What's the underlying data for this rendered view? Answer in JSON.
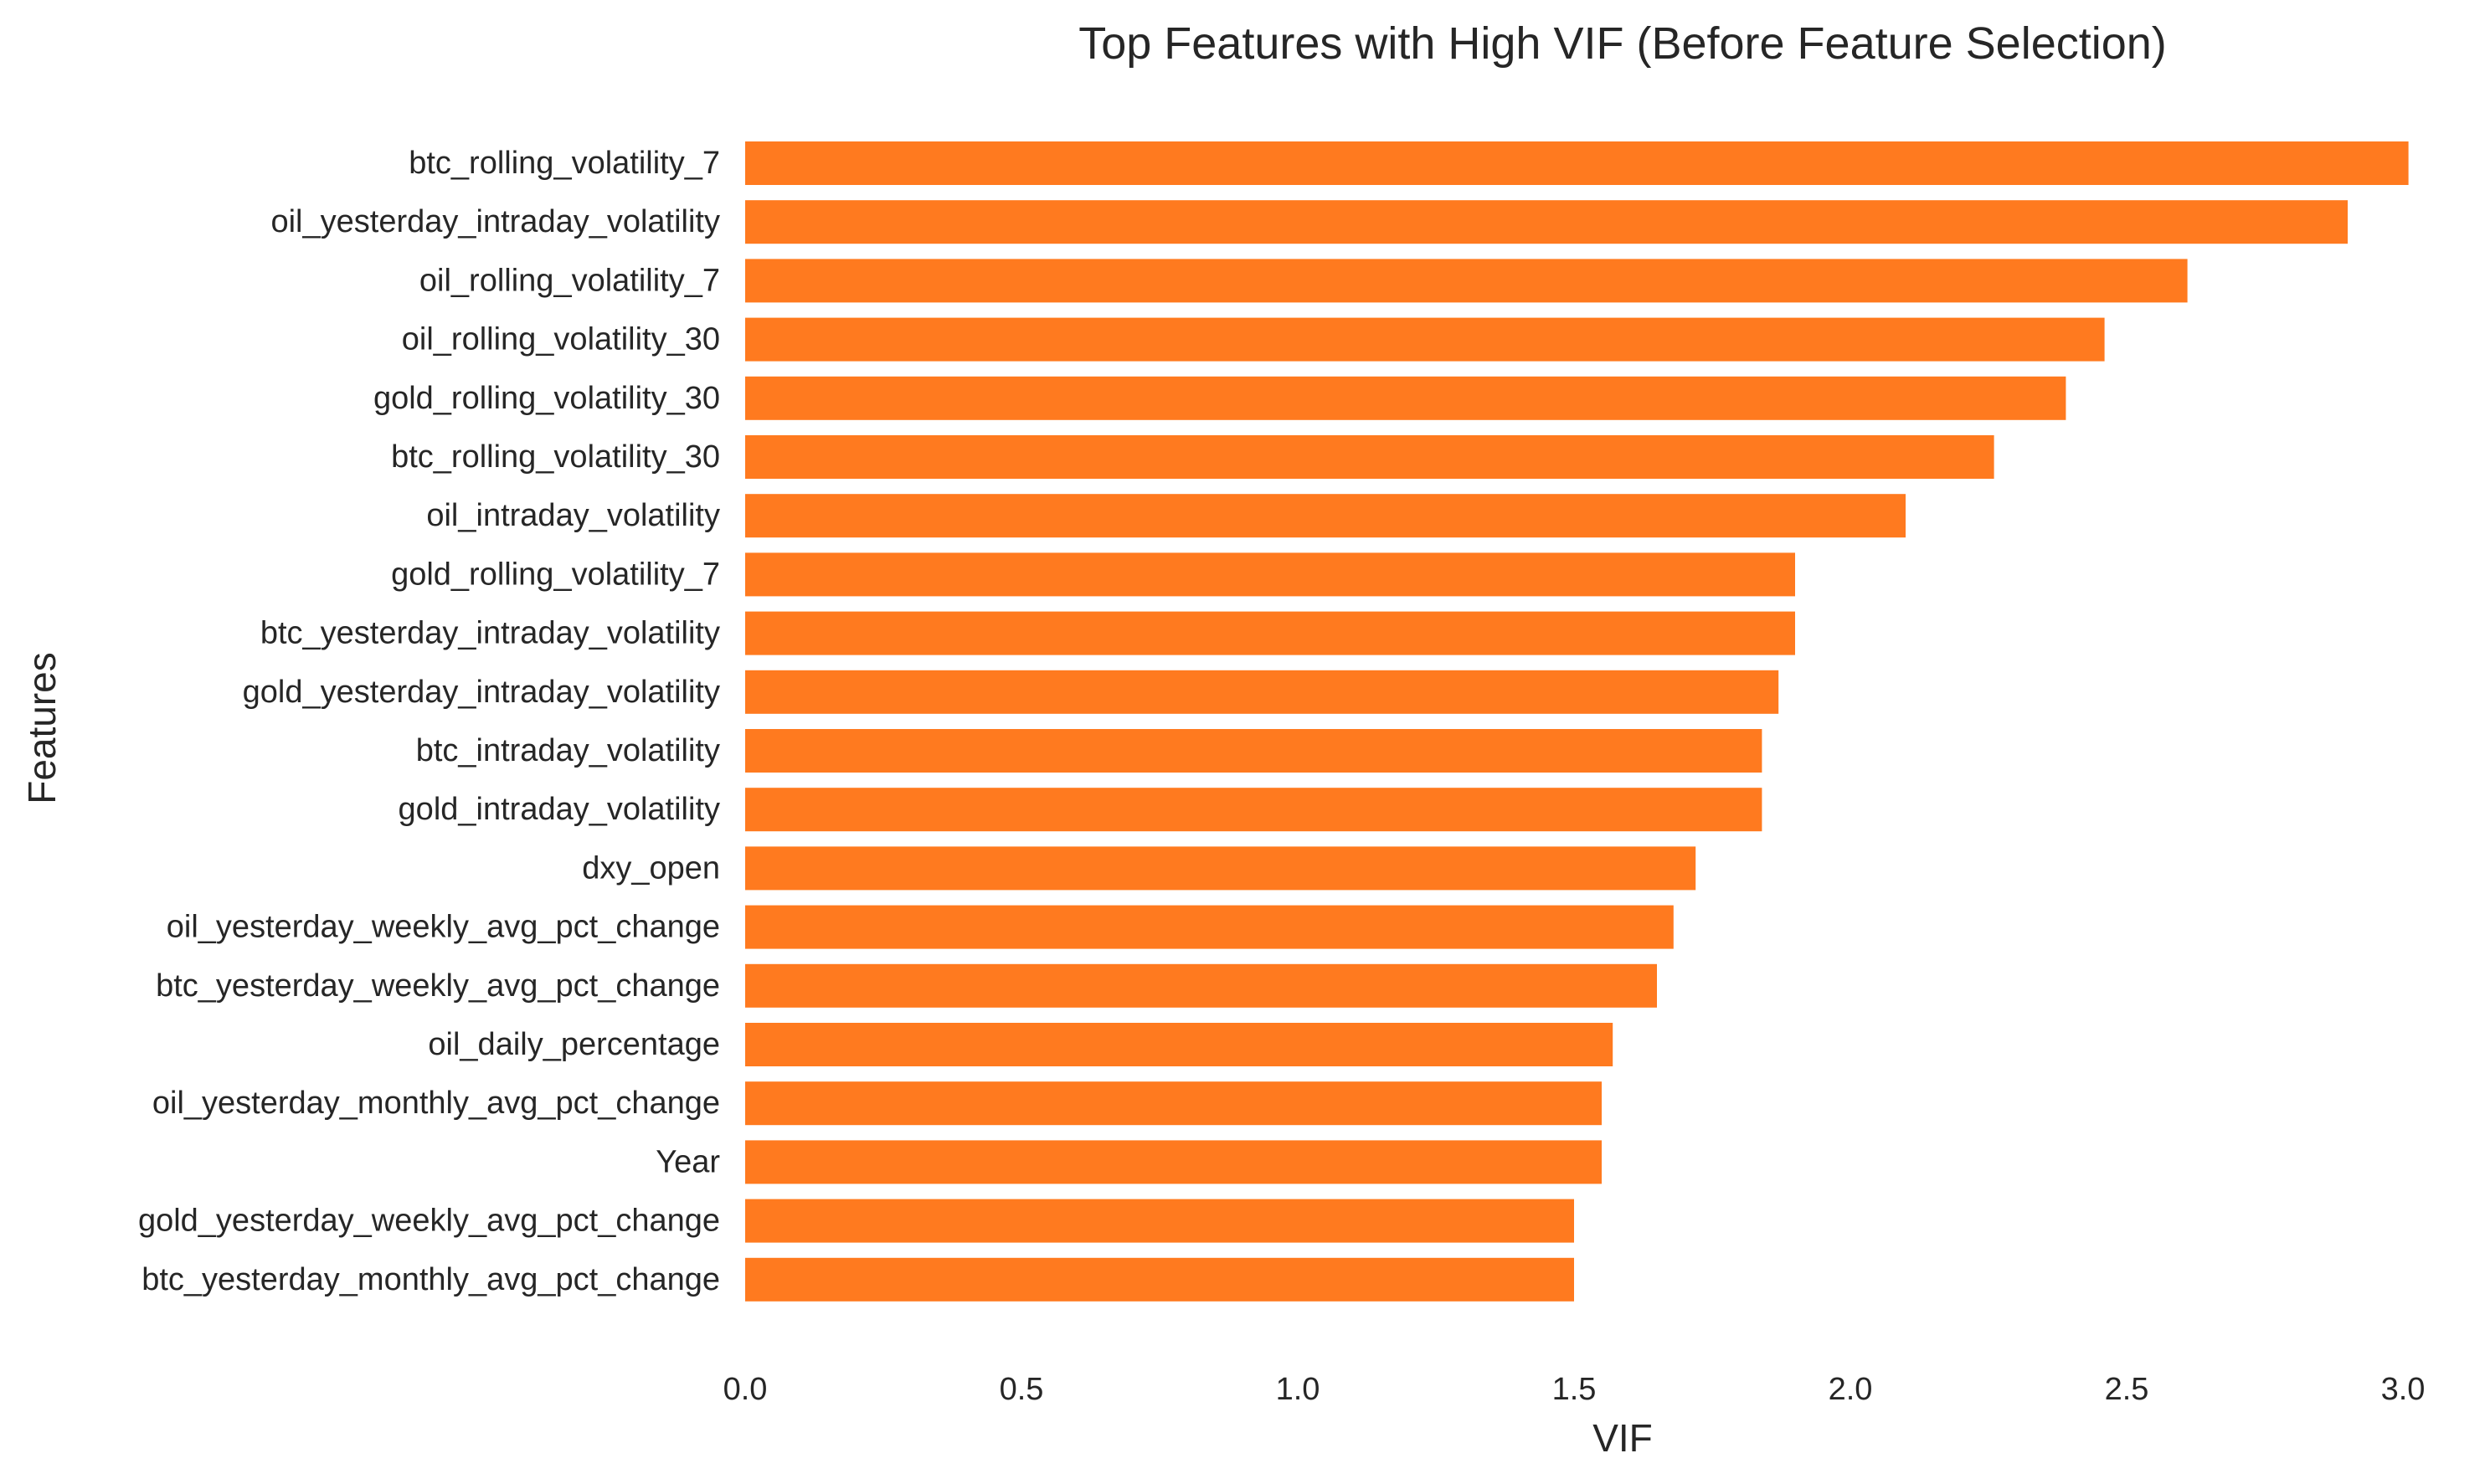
{
  "chart_data": {
    "type": "bar",
    "orientation": "horizontal",
    "title": "Top Features with High VIF (Before Feature Selection)",
    "xlabel": "VIF",
    "ylabel": "Features",
    "xlim": [
      0,
      3.0
    ],
    "xticks": [
      "0.0",
      "0.5",
      "1.0",
      "1.5",
      "2.0",
      "2.5",
      "3.0"
    ],
    "grid": false,
    "bar_color": "#ff7a1f",
    "categories": [
      "btc_rolling_volatility_7",
      "oil_yesterday_intraday_volatility",
      "oil_rolling_volatility_7",
      "oil_rolling_volatility_30",
      "gold_rolling_volatility_30",
      "btc_rolling_volatility_30",
      "oil_intraday_volatility",
      "gold_rolling_volatility_7",
      "btc_yesterday_intraday_volatility",
      "gold_yesterday_intraday_volatility",
      "btc_intraday_volatility",
      "gold_intraday_volatility",
      "dxy_open",
      "oil_yesterday_weekly_avg_pct_change",
      "btc_yesterday_weekly_avg_pct_change",
      "oil_daily_percentage",
      "oil_yesterday_monthly_avg_pct_change",
      "Year",
      "gold_yesterday_weekly_avg_pct_change",
      "btc_yesterday_monthly_avg_pct_change"
    ],
    "values": [
      3.01,
      2.9,
      2.61,
      2.46,
      2.39,
      2.26,
      2.1,
      1.9,
      1.9,
      1.87,
      1.84,
      1.84,
      1.72,
      1.68,
      1.65,
      1.57,
      1.55,
      1.55,
      1.5,
      1.5
    ]
  }
}
